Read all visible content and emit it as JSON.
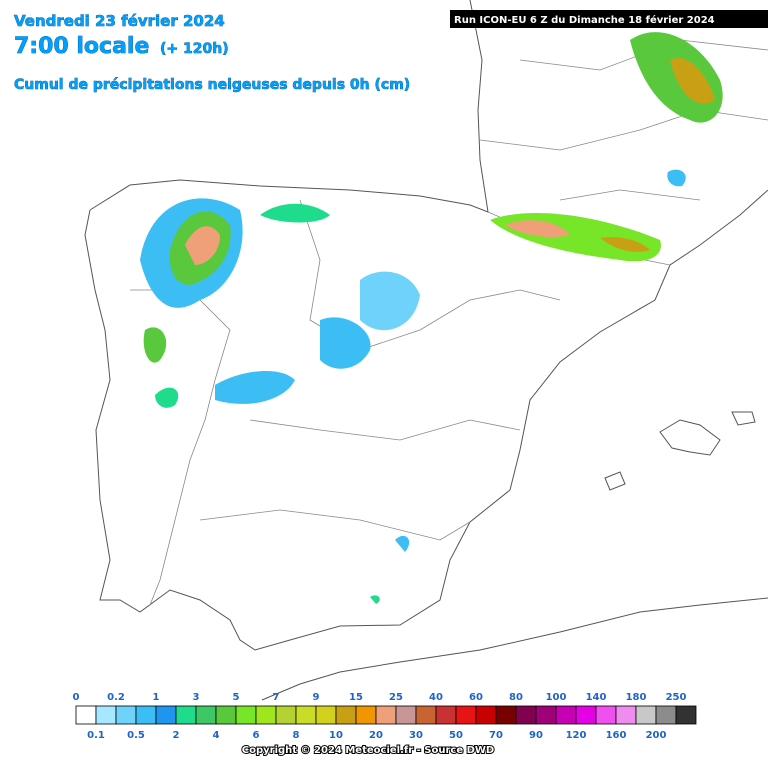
{
  "header": {
    "date": "Vendredi 23 février 2024",
    "time": "7:00 locale",
    "lead": "(+ 120h)",
    "title": "Cumul de précipitations neigeuses depuis 0h (cm)",
    "run": "Run ICON-EU 6 Z du Dimanche 18 février 2024"
  },
  "legend": {
    "items": [
      {
        "value": 0,
        "color": "#ffffff"
      },
      {
        "value": 0.1,
        "color": "#a6e8ff"
      },
      {
        "value": 0.2,
        "color": "#6ed2fa"
      },
      {
        "value": 0.5,
        "color": "#3cbef5"
      },
      {
        "value": 1,
        "color": "#1e96f0"
      },
      {
        "value": 2,
        "color": "#1edc8c"
      },
      {
        "value": 3,
        "color": "#3cc864"
      },
      {
        "value": 4,
        "color": "#5ac83c"
      },
      {
        "value": 5,
        "color": "#78e628"
      },
      {
        "value": 6,
        "color": "#a0e61e"
      },
      {
        "value": 7,
        "color": "#b4d232"
      },
      {
        "value": 8,
        "color": "#c8dc28"
      },
      {
        "value": 9,
        "color": "#d2d21e"
      },
      {
        "value": 10,
        "color": "#c8a014"
      },
      {
        "value": 15,
        "color": "#f09600"
      },
      {
        "value": 20,
        "color": "#f0a078"
      },
      {
        "value": 25,
        "color": "#c89696"
      },
      {
        "value": 30,
        "color": "#c86432"
      },
      {
        "value": 40,
        "color": "#c83232"
      },
      {
        "value": 50,
        "color": "#e61414"
      },
      {
        "value": 60,
        "color": "#c80000"
      },
      {
        "value": 70,
        "color": "#780000"
      },
      {
        "value": 80,
        "color": "#820050"
      },
      {
        "value": 90,
        "color": "#a00078"
      },
      {
        "value": 100,
        "color": "#c800b4"
      },
      {
        "value": 120,
        "color": "#e600e6"
      },
      {
        "value": 140,
        "color": "#f050f0"
      },
      {
        "value": 160,
        "color": "#f08cf0"
      },
      {
        "value": 180,
        "color": "#c8c8c8"
      },
      {
        "value": 200,
        "color": "#8c8c8c"
      },
      {
        "value": 250,
        "color": "#323232"
      }
    ]
  },
  "footer": {
    "copyright": "Copyright © 2024 Meteociel.fr - Source DWD"
  }
}
